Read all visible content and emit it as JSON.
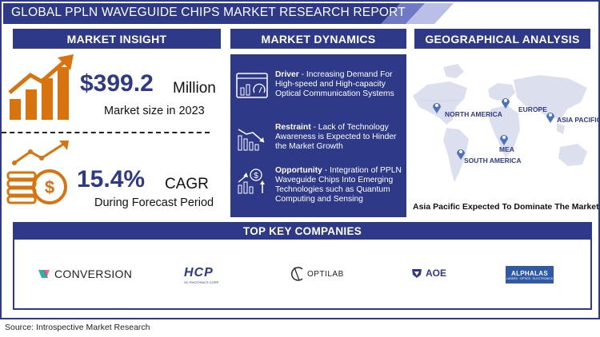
{
  "title": "GLOBAL PPLN WAVEGUIDE CHIPS MARKET RESEARCH REPORT",
  "sections": {
    "insight": "MARKET INSIGHT",
    "dynamics": "MARKET DYNAMICS",
    "geo": "GEOGRAPHICAL ANALYSIS",
    "companies": "TOP KEY COMPANIES"
  },
  "insight": {
    "market_value": "$399.2",
    "market_unit": "Million",
    "market_sub": "Market size in 2023",
    "cagr_value": "15.4%",
    "cagr_unit": "CAGR",
    "cagr_sub": "During Forecast Period"
  },
  "dynamics": [
    {
      "label": "Driver",
      "text": "Increasing Demand For High-speed and High-capacity Optical Communication Systems",
      "icon": "dashboard-chart-icon"
    },
    {
      "label": "Restraint",
      "text": "Lack of Technology Awareness is Expected to Hinder the Market Growth",
      "icon": "declining-chart-icon"
    },
    {
      "label": "Opportunity",
      "text": "Integration of PPLN Waveguide Chips Into Emerging Technologies such as Quantum Computing and Sensing",
      "icon": "rising-chart-icon"
    }
  ],
  "geo": {
    "regions": [
      "NORTH AMERICA",
      "EUROPE",
      "ASIA PACIFIC",
      "MEA",
      "SOUTH AMERICA"
    ],
    "caption": "Asia Pacific Expected To Dominate The Market"
  },
  "companies": {
    "conversion": "CONVERSION",
    "hcp": "HCP",
    "hcp_sub": "HC PHOTONICS CORP.",
    "optilab": "OPTILAB",
    "aoe": "AOE",
    "alphalas": "ALPHALAS",
    "alphalas_sub": "LASERS · OPTICS · ELECTRONICS"
  },
  "source": "Source: Introspective Market Research",
  "colors": {
    "navy": "#2e3a87",
    "orange": "#d9730d",
    "light_purple": "#b9bfe6"
  }
}
